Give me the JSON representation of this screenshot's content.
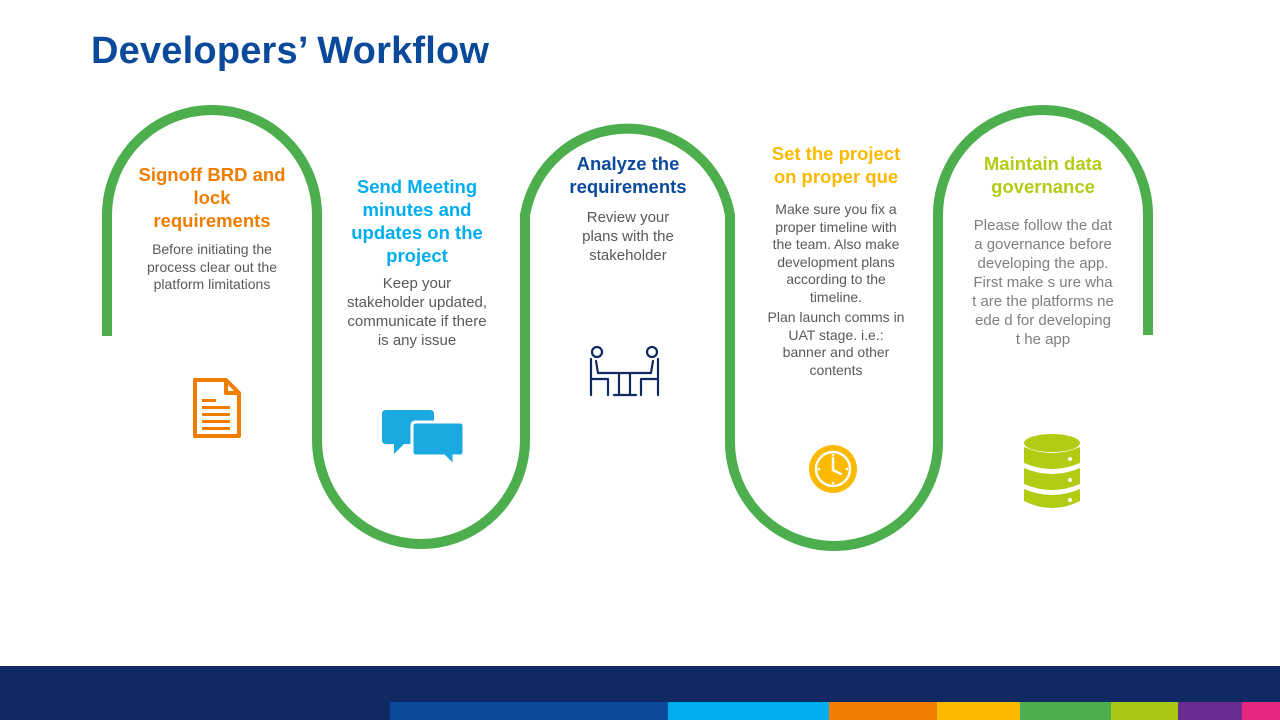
{
  "title": "Developers’ Workflow",
  "steps": [
    {
      "heading": "Signoff BRD and lock requirements",
      "body": "Before initiating the process clear out the platform limitations",
      "color": "#ef7d00",
      "icon": "document-icon"
    },
    {
      "heading": "Send Meeting minutes and updates on the project",
      "body": "Keep your stakeholder updated, communicate if there is any issue",
      "color": "#00adef",
      "icon": "chat-bubbles-icon"
    },
    {
      "heading": "Analyze the requirements",
      "body": "Review your plans with the stakeholder",
      "color": "#0b4a9a",
      "icon": "meeting-icon"
    },
    {
      "heading": "Set the project on proper que",
      "body": "Make sure you fix a proper timeline with the team. Also make development plans according to the timeline.",
      "body2": "Plan launch comms in UAT stage. i.e.: banner and other contents",
      "color": "#fbb900",
      "icon": "clock-icon"
    },
    {
      "heading": "Maintain data governance",
      "body": "Please follow the data governance before developing the app. First make s ure what are the platforms neede d for developing t he app",
      "color": "#b2cb13",
      "icon": "database-icon"
    }
  ],
  "wave_color": "#4cae4c",
  "footer_stripes": [
    "#0b4a9a",
    "#00adef",
    "#ef7d00",
    "#fbb900",
    "#4cae4c",
    "#a8c814",
    "#6a2c91",
    "#e6267f"
  ]
}
